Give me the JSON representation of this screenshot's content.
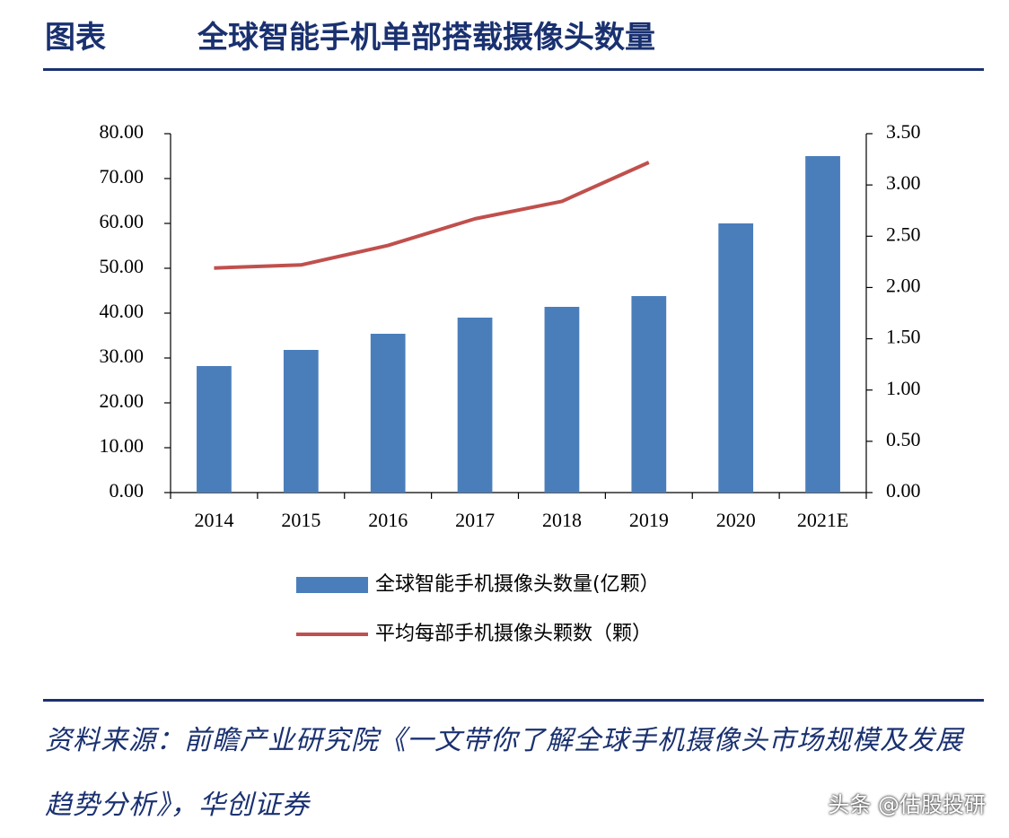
{
  "header": {
    "label": "图表",
    "title": "全球智能手机单部搭载摄像头数量"
  },
  "chart_data": {
    "type": "bar",
    "categories": [
      "2014",
      "2015",
      "2016",
      "2017",
      "2018",
      "2019",
      "2020",
      "2021E"
    ],
    "series": [
      {
        "name": "全球智能手机摄像头数量(亿颗）",
        "color": "#4a7ebb",
        "type": "bar",
        "values": [
          28.2,
          31.8,
          35.4,
          39.0,
          41.4,
          43.8,
          60.0,
          75.0
        ]
      },
      {
        "name": "平均每部手机摄像头颗数（颗）",
        "color": "#c0504d",
        "type": "line",
        "axis": "y2",
        "values": [
          2.19,
          2.22,
          2.41,
          2.67,
          2.84,
          3.22,
          null,
          null
        ]
      }
    ],
    "ylim": [
      0,
      80
    ],
    "yticks": [
      {
        "value": 0,
        "label": "0.00"
      },
      {
        "value": 10,
        "label": "10.00"
      },
      {
        "value": 20,
        "label": "20.00"
      },
      {
        "value": 30,
        "label": "30.00"
      },
      {
        "value": 40,
        "label": "40.00"
      },
      {
        "value": 50,
        "label": "50.00"
      },
      {
        "value": 60,
        "label": "60.00"
      },
      {
        "value": 70,
        "label": "70.00"
      },
      {
        "value": 80,
        "label": "80.00"
      }
    ],
    "y2lim": [
      0,
      3.5
    ],
    "y2ticks": [
      {
        "value": 0,
        "label": "0.00"
      },
      {
        "value": 0.5,
        "label": "0.50"
      },
      {
        "value": 1,
        "label": "1.00"
      },
      {
        "value": 1.5,
        "label": "1.50"
      },
      {
        "value": 2,
        "label": "2.00"
      },
      {
        "value": 2.5,
        "label": "2.50"
      },
      {
        "value": 3,
        "label": "3.00"
      },
      {
        "value": 3.5,
        "label": "3.50"
      }
    ],
    "grid": false
  },
  "source": "资料来源：前瞻产业研究院《一文带你了解全球手机摄像头市场规模及发展趋势分析》，华创证券",
  "watermark": "头条 @估股投研"
}
